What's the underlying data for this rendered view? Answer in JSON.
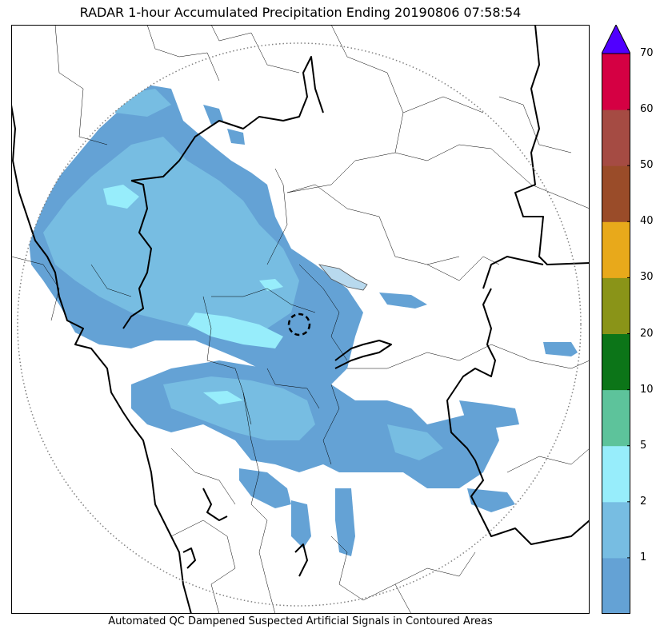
{
  "title": "RADAR 1-hour Accumulated Precipitation Ending 20190806 07:58:54",
  "footer": "Automated QC Dampened Suspected Artificial Signals in Contoured Areas",
  "colorbar": {
    "ticks": [
      "1",
      "2",
      "5",
      "10",
      "20",
      "30",
      "40",
      "50",
      "60",
      "70"
    ],
    "bands": [
      {
        "from": 0,
        "to": 1,
        "color": "#64a2d5"
      },
      {
        "from": 1,
        "to": 2,
        "color": "#77bde2"
      },
      {
        "from": 2,
        "to": 5,
        "color": "#97edfb"
      },
      {
        "from": 5,
        "to": 10,
        "color": "#5dc39b"
      },
      {
        "from": 10,
        "to": 20,
        "color": "#0c7518"
      },
      {
        "from": 20,
        "to": 30,
        "color": "#8a9418"
      },
      {
        "from": 30,
        "to": 40,
        "color": "#e8a91b"
      },
      {
        "from": 40,
        "to": 50,
        "color": "#9a4c29"
      },
      {
        "from": 50,
        "to": 60,
        "color": "#a54b43"
      },
      {
        "from": 60,
        "to": 70,
        "color": "#d50043"
      }
    ],
    "extend_color": "#5000ff"
  },
  "map": {
    "range_ring": "dotted",
    "radar_site": "dashed circle",
    "precip_colors": {
      "light": "#64a2d5",
      "moderate": "#77bde2",
      "heavy": "#97edfb"
    },
    "boundary_color": "#000000"
  }
}
